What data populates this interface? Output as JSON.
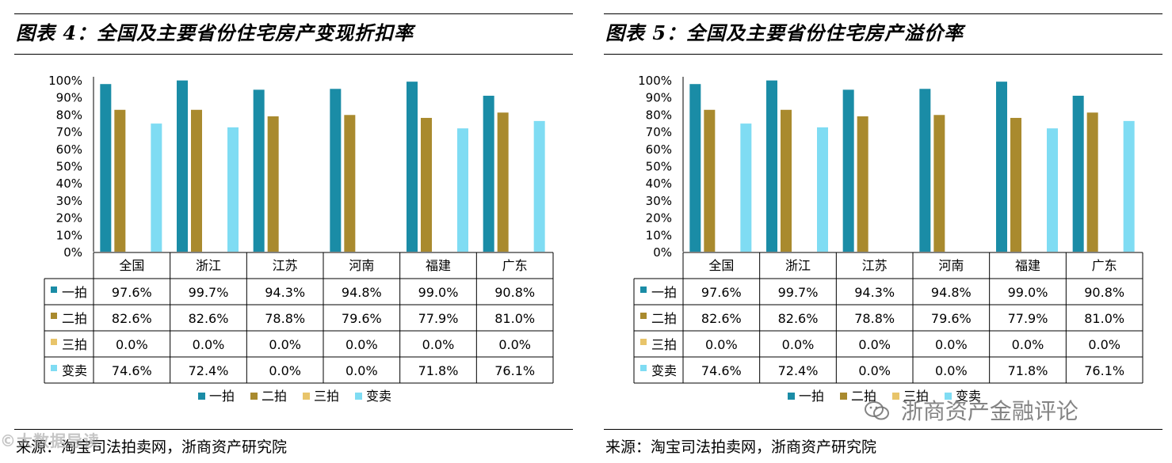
{
  "figures": [
    {
      "title": "图表 4：全国及主要省份住宅房产变现折扣率",
      "source": "来源：淘宝司法拍卖网，浙商资产研究院"
    },
    {
      "title": "图表 5：全国及主要省份住宅房产溢价率",
      "source": "来源：淘宝司法拍卖网，浙商资产研究院"
    }
  ],
  "watermarks": {
    "left": "©大数据导读",
    "right": "浙商资产金融评论"
  },
  "colors": {
    "一拍": "#1a8ca6",
    "二拍": "#a98a2e",
    "三拍": "#e8c46a",
    "变卖": "#7fdcf3"
  },
  "chart_data": [
    {
      "type": "bar",
      "title": "图表 4：全国及主要省份住宅房产变现折扣率",
      "categories": [
        "全国",
        "浙江",
        "江苏",
        "河南",
        "福建",
        "广东"
      ],
      "series": [
        {
          "name": "一拍",
          "values": [
            97.6,
            99.7,
            94.3,
            94.8,
            99.0,
            90.8
          ],
          "labels": [
            "97.6%",
            "99.7%",
            "94.3%",
            "94.8%",
            "99.0%",
            "90.8%"
          ]
        },
        {
          "name": "二拍",
          "values": [
            82.6,
            82.6,
            78.8,
            79.6,
            77.9,
            81.0
          ],
          "labels": [
            "82.6%",
            "82.6%",
            "78.8%",
            "79.6%",
            "77.9%",
            "81.0%"
          ]
        },
        {
          "name": "三拍",
          "values": [
            0,
            0,
            0,
            0,
            0,
            0
          ],
          "labels": [
            "0.0%",
            "0.0%",
            "0.0%",
            "0.0%",
            "0.0%",
            "0.0%"
          ]
        },
        {
          "name": "变卖",
          "values": [
            74.6,
            72.4,
            0,
            0,
            71.8,
            76.1
          ],
          "labels": [
            "74.6%",
            "72.4%",
            "0.0%",
            "0.0%",
            "71.8%",
            "76.1%"
          ]
        }
      ],
      "yticks": [
        "0%",
        "10%",
        "20%",
        "30%",
        "40%",
        "50%",
        "60%",
        "70%",
        "80%",
        "90%",
        "100%"
      ],
      "ylim": [
        0,
        100
      ],
      "legend": "bottom",
      "data_table": true
    },
    {
      "type": "bar",
      "title": "图表 5：全国及主要省份住宅房产溢价率",
      "categories": [
        "全国",
        "浙江",
        "江苏",
        "河南",
        "福建",
        "广东"
      ],
      "series": [
        {
          "name": "一拍",
          "values": [
            97.6,
            99.7,
            94.3,
            94.8,
            99.0,
            90.8
          ],
          "labels": [
            "97.6%",
            "99.7%",
            "94.3%",
            "94.8%",
            "99.0%",
            "90.8%"
          ]
        },
        {
          "name": "二拍",
          "values": [
            82.6,
            82.6,
            78.8,
            79.6,
            77.9,
            81.0
          ],
          "labels": [
            "82.6%",
            "82.6%",
            "78.8%",
            "79.6%",
            "77.9%",
            "81.0%"
          ]
        },
        {
          "name": "三拍",
          "values": [
            0,
            0,
            0,
            0,
            0,
            0
          ],
          "labels": [
            "0.0%",
            "0.0%",
            "0.0%",
            "0.0%",
            "0.0%",
            "0.0%"
          ]
        },
        {
          "name": "变卖",
          "values": [
            74.6,
            72.4,
            0,
            0,
            71.8,
            76.1
          ],
          "labels": [
            "74.6%",
            "72.4%",
            "0.0%",
            "0.0%",
            "71.8%",
            "76.1%"
          ]
        }
      ],
      "yticks": [
        "0%",
        "10%",
        "20%",
        "30%",
        "40%",
        "50%",
        "60%",
        "70%",
        "80%",
        "90%",
        "100%"
      ],
      "ylim": [
        0,
        100
      ],
      "legend": "bottom",
      "data_table": true
    }
  ]
}
